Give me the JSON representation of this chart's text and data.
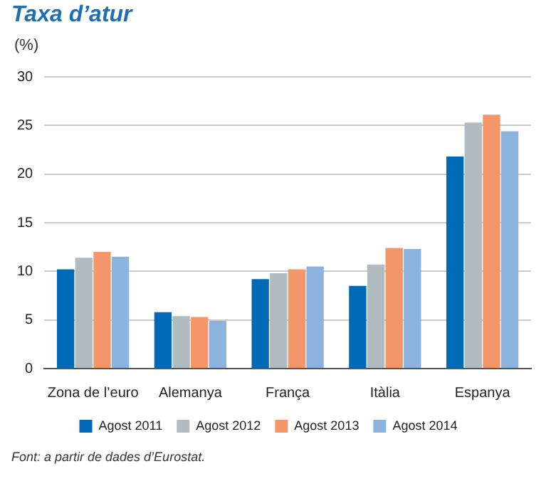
{
  "chart_data": {
    "type": "bar",
    "title": "Taxa d’atur",
    "ylabel": "(%)",
    "categories": [
      "Zona de l’euro",
      "Alemanya",
      "França",
      "Itàlia",
      "Espanya"
    ],
    "series": [
      {
        "name": "Agost 2011",
        "color": "#006ab7",
        "values": [
          10.2,
          5.8,
          9.2,
          8.5,
          21.8
        ]
      },
      {
        "name": "Agost 2012",
        "color": "#b1bcc0",
        "values": [
          11.4,
          5.4,
          9.8,
          10.7,
          25.3
        ]
      },
      {
        "name": "Agost 2013",
        "color": "#f3976a",
        "values": [
          12.0,
          5.3,
          10.2,
          12.4,
          26.1
        ]
      },
      {
        "name": "Agost 2014",
        "color": "#8cb2de",
        "values": [
          11.5,
          4.9,
          10.5,
          12.3,
          24.4
        ]
      }
    ],
    "ylim": [
      0,
      30
    ],
    "yticks": [
      0,
      5,
      10,
      15,
      20,
      25,
      30
    ],
    "grid": "y",
    "legend": "bottom",
    "annotations": [
      "Font: a partir de dades d’Eurostat."
    ]
  }
}
